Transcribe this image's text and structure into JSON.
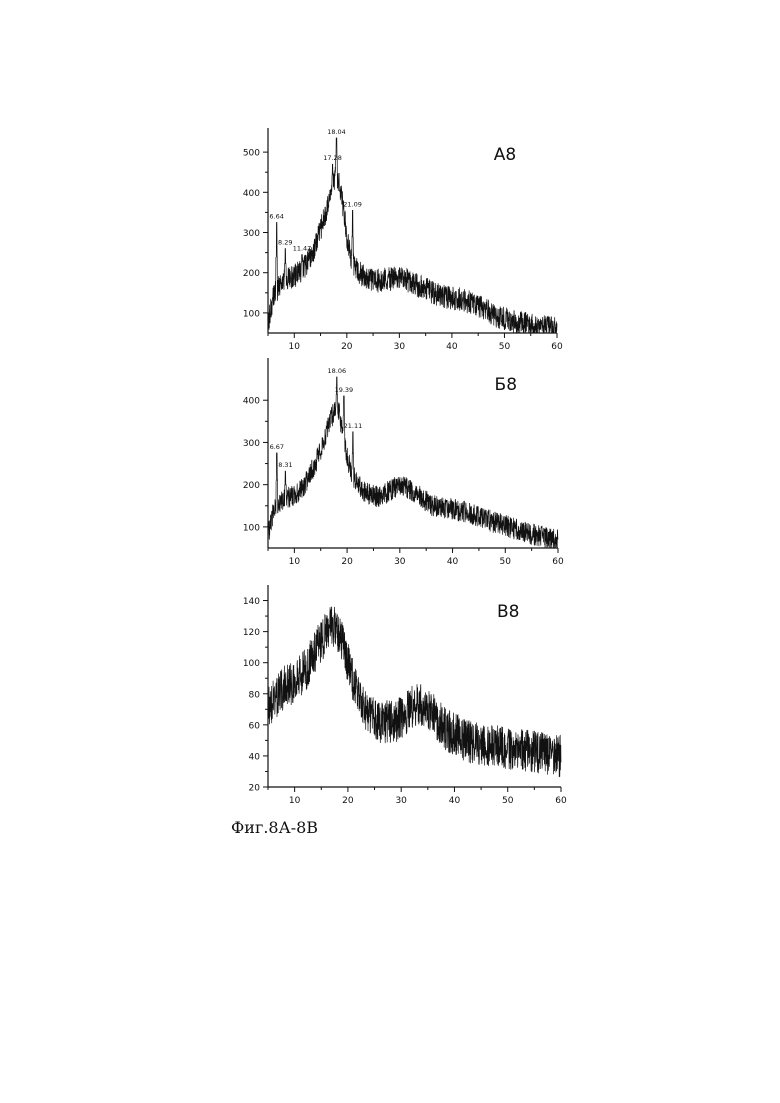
{
  "caption": "Фиг.8А-8В",
  "chart_data": [
    {
      "type": "line",
      "panel_label": "А8",
      "xlim": [
        5,
        60
      ],
      "ylim": [
        50,
        560
      ],
      "xticks": [
        10,
        20,
        30,
        40,
        50,
        60
      ],
      "yticks": [
        100,
        200,
        300,
        400,
        500
      ],
      "grid": false,
      "series_color": "#111111",
      "noise": 30,
      "profile": [
        [
          5,
          75
        ],
        [
          6,
          140
        ],
        [
          8,
          185
        ],
        [
          10,
          190
        ],
        [
          12,
          215
        ],
        [
          14,
          265
        ],
        [
          16,
          350
        ],
        [
          17.3,
          420
        ],
        [
          18,
          450
        ],
        [
          19,
          390
        ],
        [
          20,
          290
        ],
        [
          21,
          225
        ],
        [
          23,
          190
        ],
        [
          26,
          180
        ],
        [
          30,
          188
        ],
        [
          34,
          165
        ],
        [
          38,
          142
        ],
        [
          42,
          133
        ],
        [
          45,
          118
        ],
        [
          48,
          95
        ],
        [
          52,
          78
        ],
        [
          56,
          68
        ],
        [
          60,
          60
        ]
      ],
      "peaks": [
        {
          "x": 6.64,
          "y": 325,
          "label": "6.64"
        },
        {
          "x": 8.29,
          "y": 260,
          "label": "8.29"
        },
        {
          "x": 11.47,
          "y": 245,
          "label": "11.47"
        },
        {
          "x": 17.28,
          "y": 470,
          "label": "17.28"
        },
        {
          "x": 18.04,
          "y": 535,
          "label": "18.04"
        },
        {
          "x": 21.09,
          "y": 355,
          "label": "21.09"
        }
      ]
    },
    {
      "type": "line",
      "panel_label": "Б8",
      "xlim": [
        5,
        60
      ],
      "ylim": [
        50,
        500
      ],
      "xticks": [
        10,
        20,
        30,
        40,
        50,
        60
      ],
      "yticks": [
        100,
        200,
        300,
        400
      ],
      "grid": false,
      "series_color": "#111111",
      "noise": 26,
      "profile": [
        [
          5,
          80
        ],
        [
          6,
          135
        ],
        [
          8,
          165
        ],
        [
          10,
          175
        ],
        [
          12,
          200
        ],
        [
          14,
          250
        ],
        [
          16,
          320
        ],
        [
          17.5,
          375
        ],
        [
          18.5,
          370
        ],
        [
          20,
          265
        ],
        [
          21,
          225
        ],
        [
          23,
          182
        ],
        [
          26,
          170
        ],
        [
          30,
          200
        ],
        [
          33,
          180
        ],
        [
          36,
          152
        ],
        [
          40,
          142
        ],
        [
          44,
          130
        ],
        [
          48,
          110
        ],
        [
          52,
          95
        ],
        [
          56,
          80
        ],
        [
          60,
          68
        ]
      ],
      "peaks": [
        {
          "x": 6.67,
          "y": 275,
          "label": "6.67"
        },
        {
          "x": 8.31,
          "y": 232,
          "label": "8.31"
        },
        {
          "x": 18.06,
          "y": 455,
          "label": "18.06"
        },
        {
          "x": 19.39,
          "y": 410,
          "label": "19.39"
        },
        {
          "x": 21.11,
          "y": 325,
          "label": "21.11"
        }
      ]
    },
    {
      "type": "line",
      "panel_label": "В8",
      "xlim": [
        5,
        60
      ],
      "ylim": [
        20,
        150
      ],
      "xticks": [
        10,
        20,
        30,
        40,
        50,
        60
      ],
      "yticks": [
        20,
        40,
        60,
        80,
        100,
        120,
        140
      ],
      "grid": false,
      "series_color": "#111111",
      "noise": 14,
      "profile": [
        [
          5,
          72
        ],
        [
          8,
          84
        ],
        [
          10,
          88
        ],
        [
          12,
          95
        ],
        [
          14,
          108
        ],
        [
          16,
          120
        ],
        [
          17.5,
          124
        ],
        [
          19,
          112
        ],
        [
          21,
          88
        ],
        [
          23,
          72
        ],
        [
          26,
          62
        ],
        [
          29,
          62
        ],
        [
          33,
          74
        ],
        [
          35,
          72
        ],
        [
          38,
          58
        ],
        [
          42,
          50
        ],
        [
          46,
          47
        ],
        [
          50,
          45
        ],
        [
          55,
          43
        ],
        [
          60,
          40
        ]
      ],
      "peaks": []
    }
  ]
}
